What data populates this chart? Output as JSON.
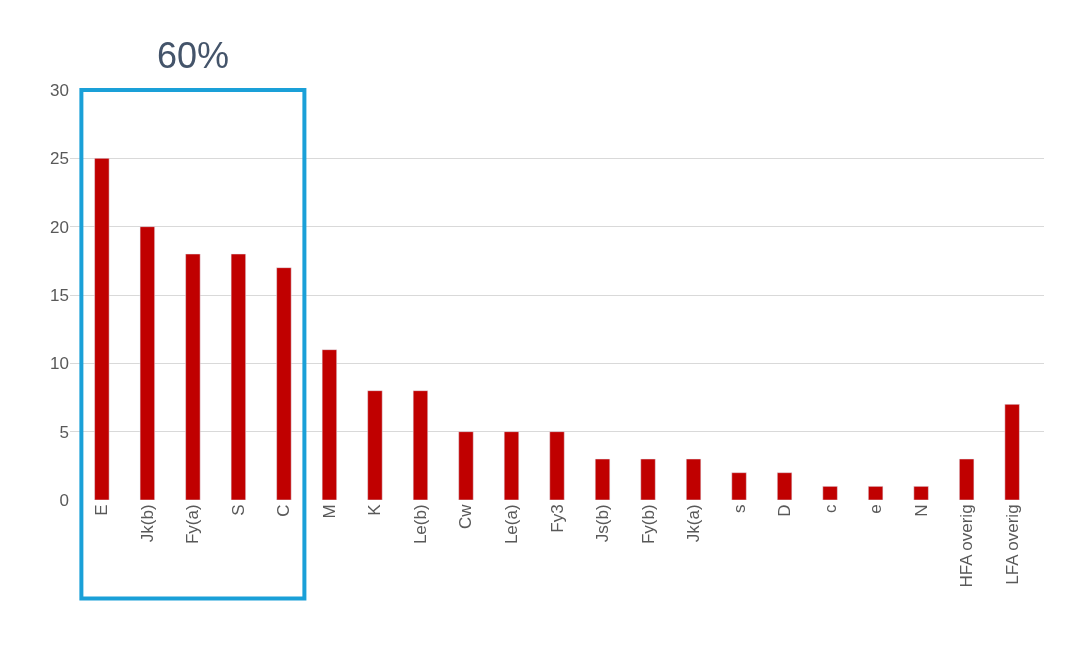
{
  "chart_data": {
    "type": "bar",
    "categories": [
      "E",
      "Jk(b)",
      "Fy(a)",
      "S",
      "C",
      "M",
      "K",
      "Le(b)",
      "Cw",
      "Le(a)",
      "Fy3",
      "Js(b)",
      "Fy(b)",
      "Jk(a)",
      "s",
      "D",
      "c",
      "e",
      "N",
      "HFA overig",
      "LFA overig"
    ],
    "values": [
      25,
      20,
      18,
      18,
      17,
      11,
      8,
      8,
      5,
      5,
      5,
      3,
      3,
      3,
      2,
      2,
      1,
      1,
      1,
      3,
      7
    ],
    "color": "#c00000",
    "ylim": [
      0,
      30
    ],
    "yticks": [
      0,
      5,
      10,
      15,
      20,
      25,
      30
    ],
    "grid": "y",
    "annotations": [
      "60%"
    ]
  }
}
